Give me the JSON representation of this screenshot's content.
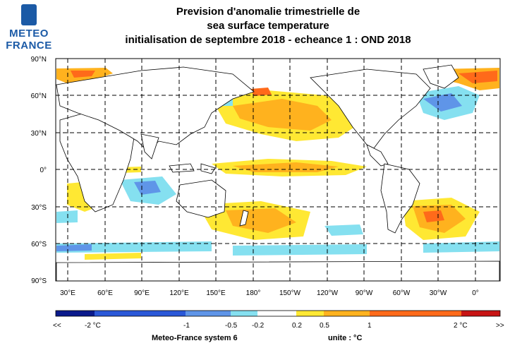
{
  "logo": {
    "line1": "METEO",
    "line2": "FRANCE"
  },
  "title": {
    "line1": "Prevision d'anomalie trimestrielle de",
    "line2": "sea surface temperature",
    "line3": "initialisation de septembre 2018  -  echeance 1 : OND 2018"
  },
  "lat_labels": [
    "90°N",
    "60°N",
    "30°N",
    "0°",
    "30°S",
    "60°S",
    "90°S"
  ],
  "lon_labels": [
    "30°E",
    "60°E",
    "90°E",
    "120°E",
    "150°E",
    "180°",
    "150°W",
    "120°W",
    "90°W",
    "60°W",
    "30°W",
    "0°"
  ],
  "colorbar": {
    "labels": [
      "<<",
      "-2 °C",
      "-1",
      "-0.5",
      "-0.2",
      "0.2",
      "0.5",
      "1",
      "2 °C",
      ">>"
    ],
    "colors": [
      "#0a1a8c",
      "#2a58d8",
      "#5f95e8",
      "#85e0f0",
      "#ffffff",
      "#ffe833",
      "#ffb21e",
      "#ff6a1a",
      "#c81414"
    ]
  },
  "footer": {
    "system": "Meteo-France system 6",
    "unit": "unite :  °C"
  }
}
